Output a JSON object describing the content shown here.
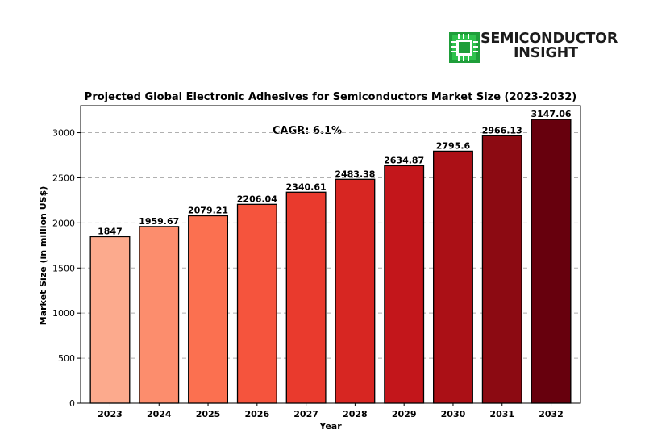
{
  "logo": {
    "line1": "SEMICONDUCTOR",
    "line2": "INSIGHT",
    "icon": "chip-icon",
    "color": "#1f9e3a"
  },
  "chart_data": {
    "type": "bar",
    "title": "Projected Global Electronic Adhesives for Semiconductors Market Size (2023-2032)",
    "xlabel": "Year",
    "ylabel": "Market Size (in million US$)",
    "annotation": "CAGR: 6.1%",
    "categories": [
      "2023",
      "2024",
      "2025",
      "2026",
      "2027",
      "2028",
      "2029",
      "2030",
      "2031",
      "2032"
    ],
    "values": [
      1847,
      1959.67,
      2079.21,
      2206.04,
      2340.61,
      2483.38,
      2634.87,
      2795.6,
      2966.13,
      3147.06
    ],
    "value_labels": [
      "1847",
      "1959.67",
      "2079.21",
      "2206.04",
      "2340.61",
      "2483.38",
      "2634.87",
      "2795.6",
      "2966.13",
      "3147.06"
    ],
    "colors": [
      "#fcaa8d",
      "#fc8d6d",
      "#fb7050",
      "#f5543d",
      "#e93a2d",
      "#d72622",
      "#c3161b",
      "#ab1016",
      "#8c0a12",
      "#67000d"
    ],
    "yticks": [
      0,
      500,
      1000,
      1500,
      2000,
      2500,
      3000
    ],
    "ylim": [
      0,
      3300
    ],
    "grid": "y-dashed",
    "legend": "none"
  }
}
